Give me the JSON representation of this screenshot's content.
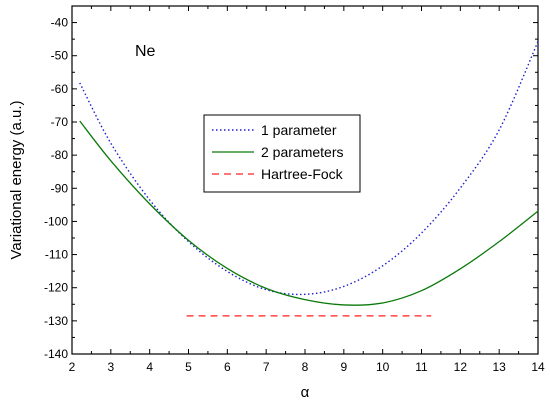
{
  "chart_data": {
    "type": "line",
    "title": "",
    "annotation": "Ne",
    "xlabel": "α",
    "ylabel": "Variational energy (a.u.)",
    "xlim": [
      2,
      14
    ],
    "ylim": [
      -140,
      -35
    ],
    "xticks": [
      2,
      3,
      4,
      5,
      6,
      7,
      8,
      9,
      10,
      11,
      12,
      13,
      14
    ],
    "yticks": [
      -140,
      -130,
      -120,
      -110,
      -100,
      -90,
      -80,
      -70,
      -60,
      -50,
      -40
    ],
    "grid": false,
    "legend_position": "center",
    "series": [
      {
        "name": "1 parameter",
        "color": "#1f1fd0",
        "style": "dotted",
        "x": [
          2.2,
          3,
          4,
          5,
          6,
          7,
          8,
          9,
          10,
          11,
          12,
          13,
          14
        ],
        "y": [
          -58.2,
          -76.4,
          -93.5,
          -106.1,
          -115.1,
          -120.6,
          -122.0,
          -119.6,
          -113.4,
          -103.5,
          -89.9,
          -72.4,
          -45.7
        ]
      },
      {
        "name": "2 parameters",
        "color": "#0a7a0a",
        "style": "solid",
        "x": [
          2.2,
          3,
          4,
          5,
          6,
          7,
          8,
          9,
          10,
          11,
          12,
          13,
          14
        ],
        "y": [
          -69.7,
          -81.7,
          -94.7,
          -105.7,
          -114.2,
          -120.2,
          -123.6,
          -125.2,
          -124.6,
          -120.9,
          -114.3,
          -106.1,
          -96.9
        ]
      },
      {
        "name": "Hartree-Fock",
        "color": "#ff2020",
        "style": "dashed",
        "x": [
          4.95,
          11.25
        ],
        "y": [
          -128.5,
          -128.5
        ]
      }
    ]
  }
}
